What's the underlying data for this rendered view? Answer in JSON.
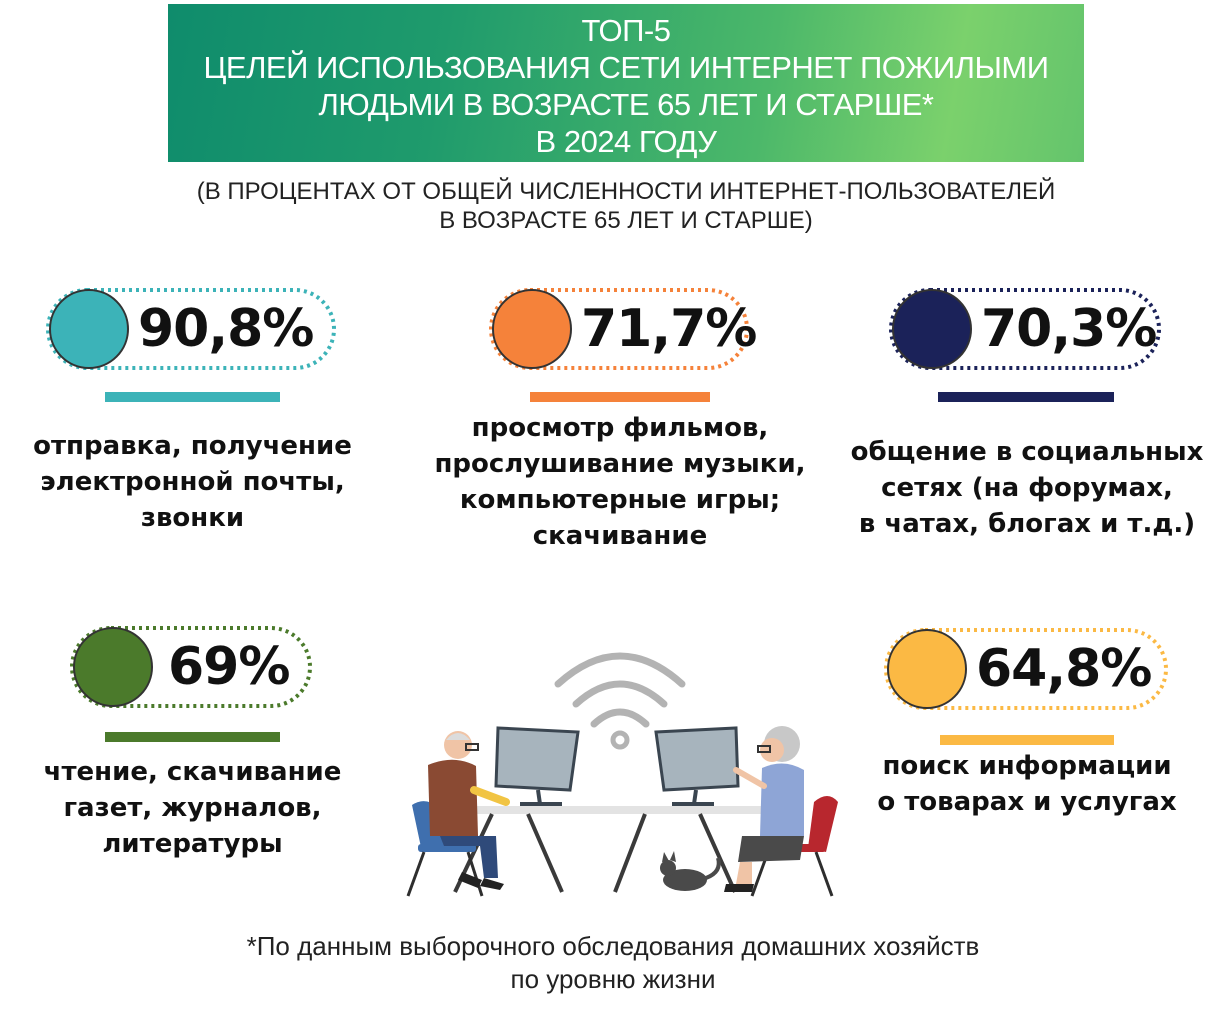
{
  "header": {
    "title_lines": [
      "ТОП-5",
      "ЦЕЛЕЙ ИСПОЛЬЗОВАНИЯ СЕТИ ИНТЕРНЕТ ПОЖИЛЫМИ",
      "ЛЮДЬМИ В ВОЗРАСТЕ 65 ЛЕТ И СТАРШЕ*",
      "В 2024 ГОДУ"
    ],
    "subtitle_lines": [
      "(В ПРОЦЕНТАХ ОТ ОБЩЕЙ ЧИСЛЕННОСТИ ИНТЕРНЕТ-ПОЛЬЗОВАТЕЛЕЙ",
      "В ВОЗРАСТЕ 65 ЛЕТ И СТАРШЕ)"
    ]
  },
  "items": [
    {
      "value": "90,8%",
      "color": "#3cb3b8",
      "lines": [
        "отправка, получение",
        "электронной почты,",
        "звонки"
      ]
    },
    {
      "value": "71,7%",
      "color": "#f5823a",
      "lines": [
        "просмотр фильмов,",
        "прослушивание музыки,",
        "компьютерные игры;",
        "скачивание"
      ]
    },
    {
      "value": "70,3%",
      "color": "#1b2259",
      "lines": [
        "общение в социальных",
        "сетях (на форумах,",
        "в чатах, блогах и т.д.)"
      ]
    },
    {
      "value": "69%",
      "color": "#4b7a2b",
      "lines": [
        "чтение, скачивание",
        "газет, журналов,",
        "литературы"
      ]
    },
    {
      "value": "64,8%",
      "color": "#fbb944",
      "lines": [
        "поиск информации",
        "о товарах и услугах"
      ]
    }
  ],
  "footnote_lines": [
    "*По данным выборочного обследования домашних хозяйств",
    "по уровню жизни"
  ],
  "illustration": {
    "icons": [
      "wifi-icon",
      "monitor-icon",
      "elderly-man-icon",
      "elderly-woman-icon",
      "cat-icon",
      "chair-icon",
      "desk-icon"
    ]
  }
}
